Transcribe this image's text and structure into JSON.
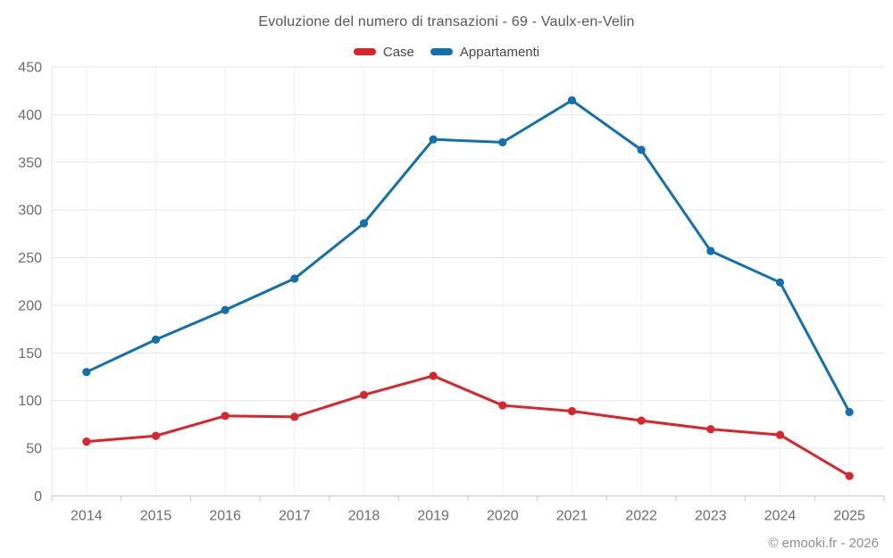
{
  "header": {
    "title": "Evoluzione del numero di transazioni - 69 - Vaulx-en-Velin"
  },
  "footer": {
    "credit": "© emooki.fr - 2026"
  },
  "style": {
    "case_color": "#d8262d",
    "appartamenti_color": "#1270ad",
    "grid_color": "#e6e6e6",
    "vgrid_color": "#efefef",
    "axis_line_color": "#c6c6c6",
    "tick_label_color": "#6a6d70",
    "title_color": "#53565a"
  },
  "chart_data": {
    "type": "line",
    "title": "Evoluzione del numero di transazioni - 69 - Vaulx-en-Velin",
    "xlabel": "",
    "ylabel": "",
    "ylim": [
      0,
      450
    ],
    "ytick_step": 50,
    "grid": true,
    "legend_position": "top",
    "categories": [
      "2014",
      "2015",
      "2016",
      "2017",
      "2018",
      "2019",
      "2020",
      "2021",
      "2022",
      "2023",
      "2024",
      "2025"
    ],
    "series": [
      {
        "name": "Case",
        "color": "#d8262d",
        "values": [
          57,
          63,
          84,
          83,
          106,
          126,
          95,
          89,
          79,
          70,
          64,
          21
        ]
      },
      {
        "name": "Appartamenti",
        "color": "#1270ad",
        "values": [
          130,
          164,
          195,
          228,
          286,
          374,
          371,
          415,
          363,
          257,
          224,
          88
        ]
      }
    ]
  }
}
